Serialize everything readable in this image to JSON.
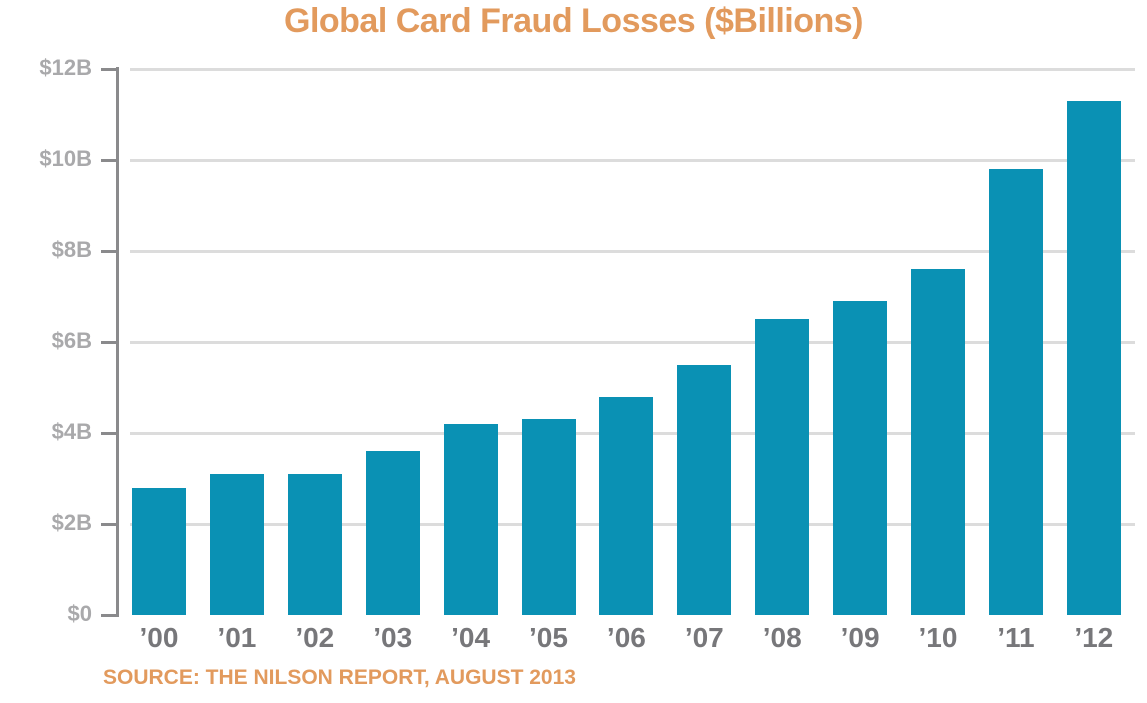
{
  "title": "Global Card Fraud Losses ($Billions)",
  "source": "SOURCE: THE NILSON REPORT, AUGUST 2013",
  "colors": {
    "bar": "#0a91b4",
    "title": "#e29a5d",
    "axis": "#8a8a8c",
    "grid": "#dcdcdc",
    "tick_label": "#a9a9ab",
    "x_label": "#77777a"
  },
  "y_axis": {
    "ticks": [
      "$12B",
      "$10B",
      "$8B",
      "$6B",
      "$4B",
      "$2B",
      "$0"
    ]
  },
  "x_axis": {
    "ticks": [
      "’00",
      "’01",
      "’02",
      "’03",
      "’04",
      "’05",
      "’06",
      "’07",
      "’08",
      "’09",
      "’10",
      "’11",
      "’12"
    ]
  },
  "chart_data": {
    "type": "bar",
    "title": "Global Card Fraud Losses ($Billions)",
    "xlabel": "",
    "ylabel": "",
    "categories": [
      "’00",
      "’01",
      "’02",
      "’03",
      "’04",
      "’05",
      "’06",
      "’07",
      "’08",
      "’09",
      "’10",
      "’11",
      "’12"
    ],
    "values": [
      2.8,
      3.1,
      3.1,
      3.6,
      4.2,
      4.3,
      4.8,
      5.5,
      6.5,
      6.9,
      7.6,
      9.8,
      11.3
    ],
    "ylim": [
      0,
      12
    ],
    "yticks": [
      "$0",
      "$2B",
      "$4B",
      "$6B",
      "$8B",
      "$10B",
      "$12B"
    ],
    "grid": true,
    "legend": "none",
    "annotations": [
      "SOURCE: THE NILSON REPORT, AUGUST 2013"
    ]
  }
}
